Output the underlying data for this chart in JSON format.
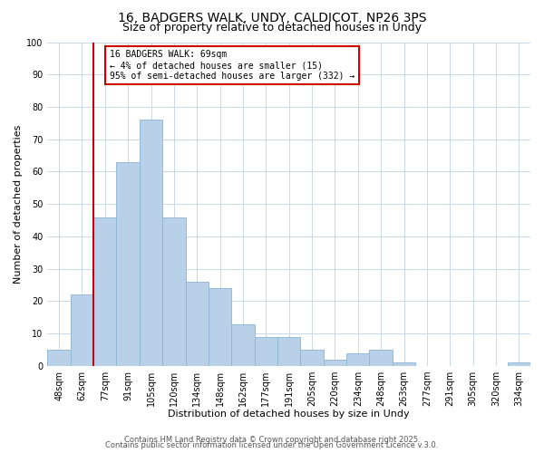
{
  "title_line1": "16, BADGERS WALK, UNDY, CALDICOT, NP26 3PS",
  "title_line2": "Size of property relative to detached houses in Undy",
  "xlabel": "Distribution of detached houses by size in Undy",
  "ylabel": "Number of detached properties",
  "categories": [
    "48sqm",
    "62sqm",
    "77sqm",
    "91sqm",
    "105sqm",
    "120sqm",
    "134sqm",
    "148sqm",
    "162sqm",
    "177sqm",
    "191sqm",
    "205sqm",
    "220sqm",
    "234sqm",
    "248sqm",
    "263sqm",
    "277sqm",
    "291sqm",
    "305sqm",
    "320sqm",
    "334sqm"
  ],
  "values": [
    5,
    22,
    46,
    63,
    76,
    46,
    26,
    24,
    13,
    9,
    9,
    5,
    2,
    4,
    5,
    1,
    0,
    0,
    0,
    0,
    1
  ],
  "bar_color": "#b8d0e8",
  "bar_edge_color": "#8ab4d4",
  "ylim": [
    0,
    100
  ],
  "yticks": [
    0,
    10,
    20,
    30,
    40,
    50,
    60,
    70,
    80,
    90,
    100
  ],
  "red_line_x": 1.5,
  "annotation_text": "16 BADGERS WALK: 69sqm\n← 4% of detached houses are smaller (15)\n95% of semi-detached houses are larger (332) →",
  "annotation_box_color": "#ffffff",
  "annotation_box_edge_color": "#cc0000",
  "footer_line1": "Contains HM Land Registry data © Crown copyright and database right 2025.",
  "footer_line2": "Contains public sector information licensed under the Open Government Licence v.3.0.",
  "background_color": "#ffffff",
  "grid_color": "#c8d8e8",
  "title_fontsize": 10,
  "subtitle_fontsize": 9,
  "axis_label_fontsize": 8,
  "tick_fontsize": 7,
  "annotation_fontsize": 7,
  "footer_fontsize": 6
}
